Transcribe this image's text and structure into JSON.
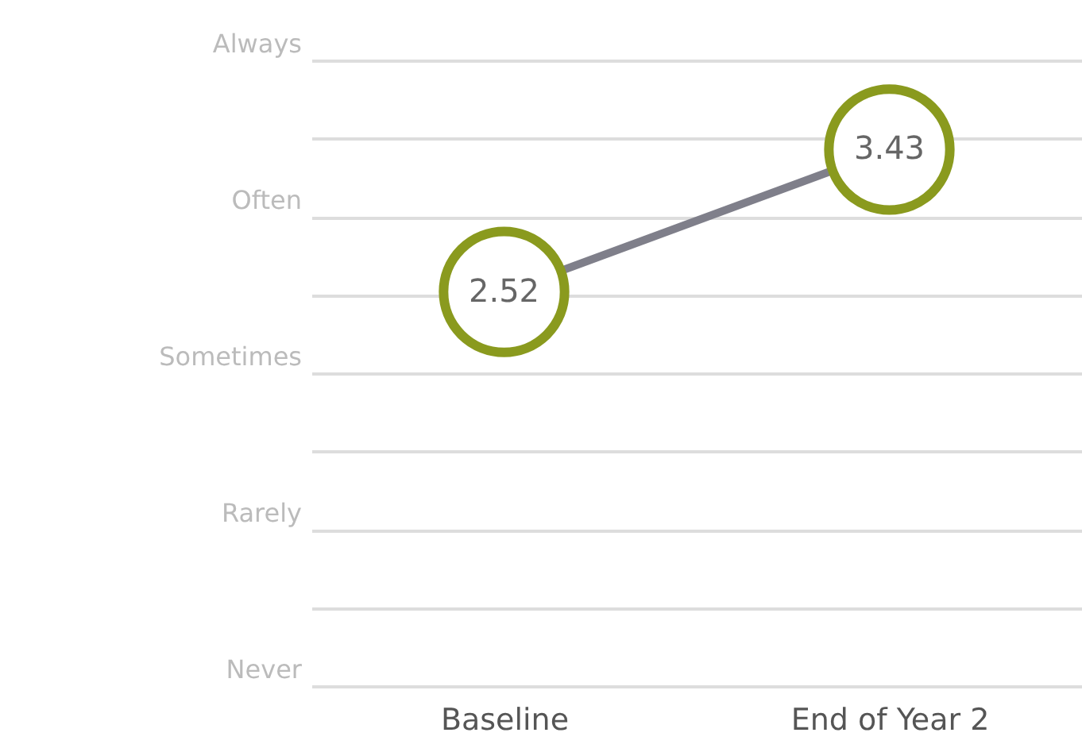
{
  "chart_data": {
    "type": "line",
    "categories": [
      "Baseline",
      "End of Year 2"
    ],
    "series": [
      {
        "color": "#7f7f8a",
        "values": [
          2.52,
          3.43
        ]
      },
      {
        "type": "scatter",
        "color": "#8a9a1e",
        "marker": "circle",
        "values": [
          2.52,
          3.43
        ],
        "value_labels": [
          "2.52",
          "3.43"
        ]
      }
    ],
    "ylim": [
      0,
      4
    ],
    "yticks": [
      {
        "value": 0,
        "label": null
      },
      {
        "value": 0.5,
        "label": null
      },
      {
        "value": 1,
        "label": null
      },
      {
        "value": 1.5,
        "label": null
      },
      {
        "value": 2,
        "label": null
      },
      {
        "value": 2.5,
        "label": null
      },
      {
        "value": 3,
        "label": null
      },
      {
        "value": 3.5,
        "label": null
      },
      {
        "value": 4,
        "label": null
      }
    ],
    "tick_labels": "x",
    "annotations": [
      "Never",
      "Rarely",
      "Sometimes",
      "Often",
      "Always"
    ],
    "grid": "y"
  }
}
